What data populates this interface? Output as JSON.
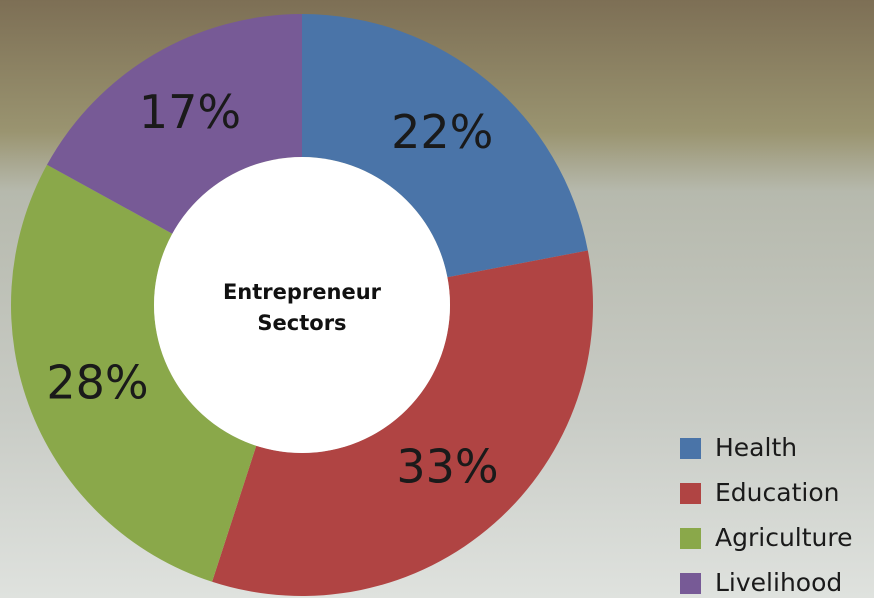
{
  "chart_data": {
    "type": "donut",
    "center_label": [
      "Entrepreneur",
      "Sectors"
    ],
    "categories": [
      "Health",
      "Education",
      "Agriculture",
      "Livelihood"
    ],
    "values": [
      22,
      33,
      28,
      17
    ],
    "value_labels": [
      "22%",
      "33%",
      "28%",
      "17%"
    ],
    "colors": [
      "#4a74a8",
      "#b04443",
      "#8aa84a",
      "#775a96"
    ],
    "legend": "bottom-right"
  }
}
